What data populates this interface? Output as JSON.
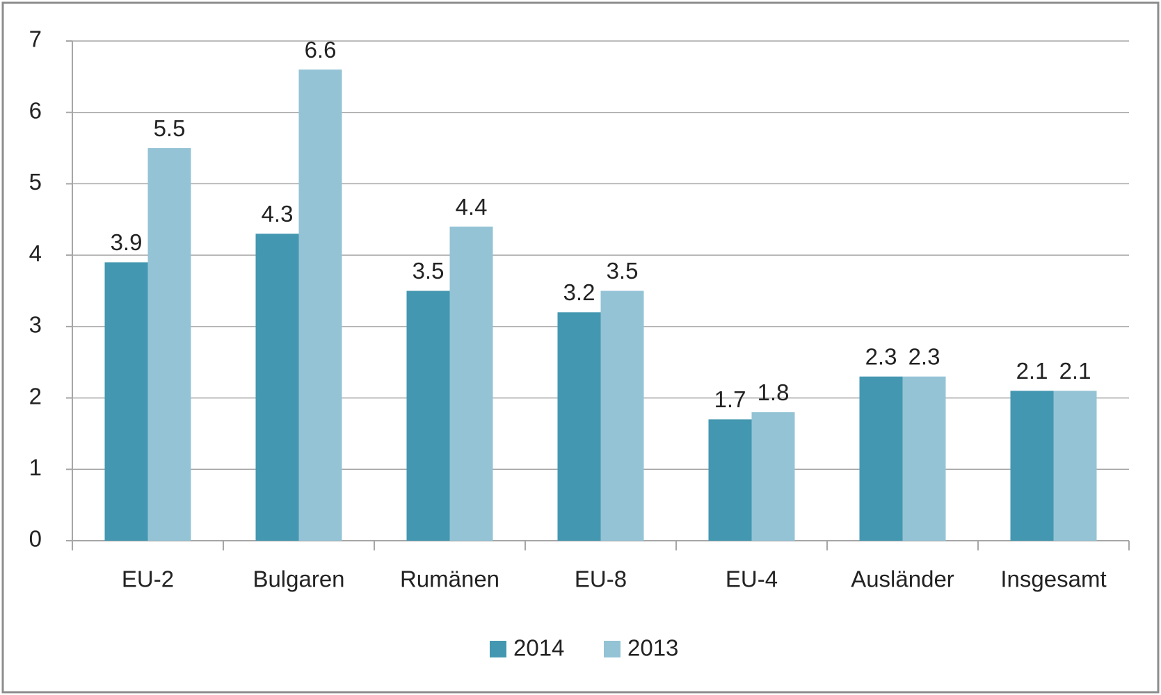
{
  "chart_data": {
    "type": "bar",
    "categories": [
      "EU-2",
      "Bulgaren",
      "Rumänen",
      "EU-8",
      "EU-4",
      "Ausländer",
      "Insgesamt"
    ],
    "series": [
      {
        "name": "2014",
        "color": "#4397b0",
        "values": [
          3.9,
          4.3,
          3.5,
          3.2,
          1.7,
          2.3,
          2.1
        ]
      },
      {
        "name": "2013",
        "color": "#93c3d5",
        "values": [
          5.5,
          6.6,
          4.4,
          3.5,
          1.8,
          2.3,
          2.1
        ]
      }
    ],
    "ylim": [
      0,
      7
    ],
    "yticks": [
      0,
      1,
      2,
      3,
      4,
      5,
      6,
      7
    ],
    "grid": true,
    "legend": "bottom"
  }
}
